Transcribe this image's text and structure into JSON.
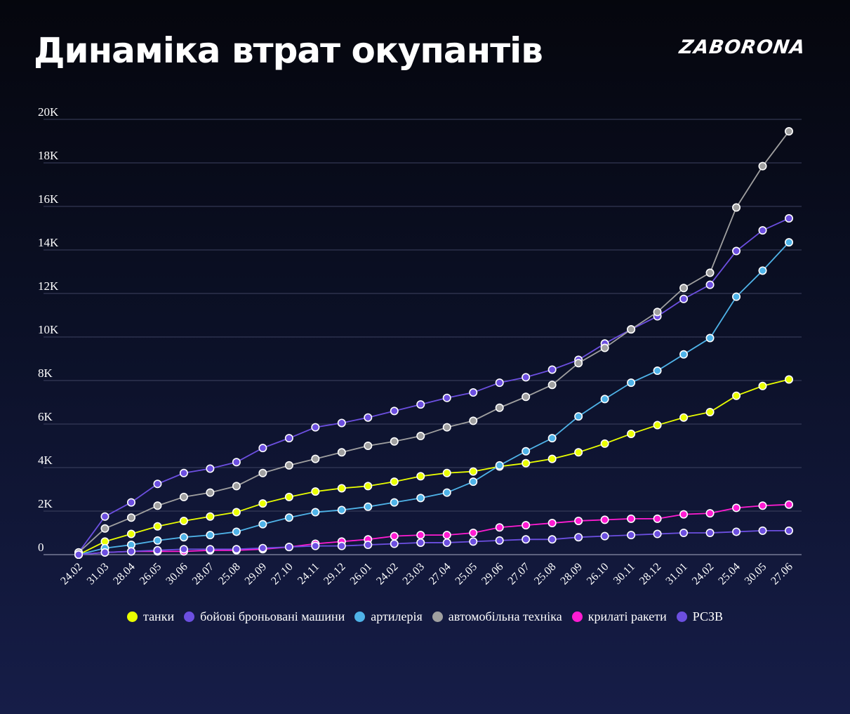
{
  "header": {
    "title": "Динаміка втрат окупантів",
    "logo": "ZABORONA"
  },
  "chart_data": {
    "type": "line",
    "title": "Динаміка втрат окупантів",
    "xlabel": "",
    "ylabel": "",
    "ylim": [
      0,
      20000
    ],
    "y_ticks": [
      "0",
      "2K",
      "4K",
      "6K",
      "8K",
      "10K",
      "12K",
      "14K",
      "16K",
      "18K",
      "20K"
    ],
    "grid": true,
    "legend_position": "bottom",
    "categories": [
      "24.02",
      "31.03",
      "28.04",
      "26.05",
      "30.06",
      "28.07",
      "25.08",
      "29.09",
      "27.10",
      "24.11",
      "29.12",
      "26.01",
      "24.02",
      "23.03",
      "27.04",
      "25.05",
      "29.06",
      "27.07",
      "25.08",
      "28.09",
      "26.10",
      "30.11",
      "28.12",
      "31.01",
      "24.02",
      "25.04",
      "30.05",
      "27.06"
    ],
    "series": [
      {
        "name": "танки",
        "color": "#eaff00",
        "values": [
          0,
          600,
          950,
          1300,
          1550,
          1750,
          1950,
          2350,
          2650,
          2900,
          3050,
          3150,
          3350,
          3600,
          3750,
          3820,
          4050,
          4200,
          4400,
          4700,
          5100,
          5550,
          5950,
          6300,
          6550,
          7300,
          7750,
          8050
        ]
      },
      {
        "name": "бойові броньовані машини",
        "color": "#6c4fe0",
        "values": [
          100,
          1750,
          2400,
          3250,
          3750,
          3950,
          4250,
          4900,
          5350,
          5850,
          6050,
          6300,
          6600,
          6900,
          7200,
          7450,
          7900,
          8150,
          8500,
          8950,
          9700,
          10350,
          10950,
          11750,
          12400,
          13950,
          14900,
          15450
        ]
      },
      {
        "name": "артилерія",
        "color": "#4fb3e8",
        "values": [
          0,
          300,
          450,
          650,
          800,
          900,
          1050,
          1400,
          1700,
          1950,
          2050,
          2200,
          2400,
          2600,
          2850,
          3350,
          4100,
          4750,
          5350,
          6350,
          7150,
          7900,
          8450,
          9200,
          9950,
          11850,
          13050,
          14350
        ]
      },
      {
        "name": "автомобільна техніка",
        "color": "#a0a0a0",
        "values": [
          100,
          1200,
          1700,
          2250,
          2650,
          2850,
          3150,
          3750,
          4100,
          4400,
          4700,
          5000,
          5200,
          5450,
          5850,
          6150,
          6750,
          7250,
          7800,
          8800,
          9500,
          10350,
          11150,
          12250,
          12950,
          15950,
          17850,
          19450
        ]
      },
      {
        "name": "крилаті ракети",
        "color": "#ff1cd2",
        "values": [
          0,
          100,
          150,
          150,
          150,
          200,
          200,
          250,
          350,
          500,
          600,
          700,
          850,
          900,
          900,
          1000,
          1250,
          1350,
          1450,
          1550,
          1600,
          1650,
          1650,
          1850,
          1900,
          2150,
          2250,
          2300
        ]
      },
      {
        "name": "РСЗВ",
        "color": "#6c4fe0",
        "values": [
          0,
          100,
          150,
          200,
          250,
          250,
          250,
          300,
          350,
          400,
          400,
          450,
          500,
          550,
          550,
          600,
          650,
          700,
          700,
          800,
          850,
          900,
          950,
          1000,
          1000,
          1050,
          1100,
          1100
        ]
      }
    ]
  }
}
